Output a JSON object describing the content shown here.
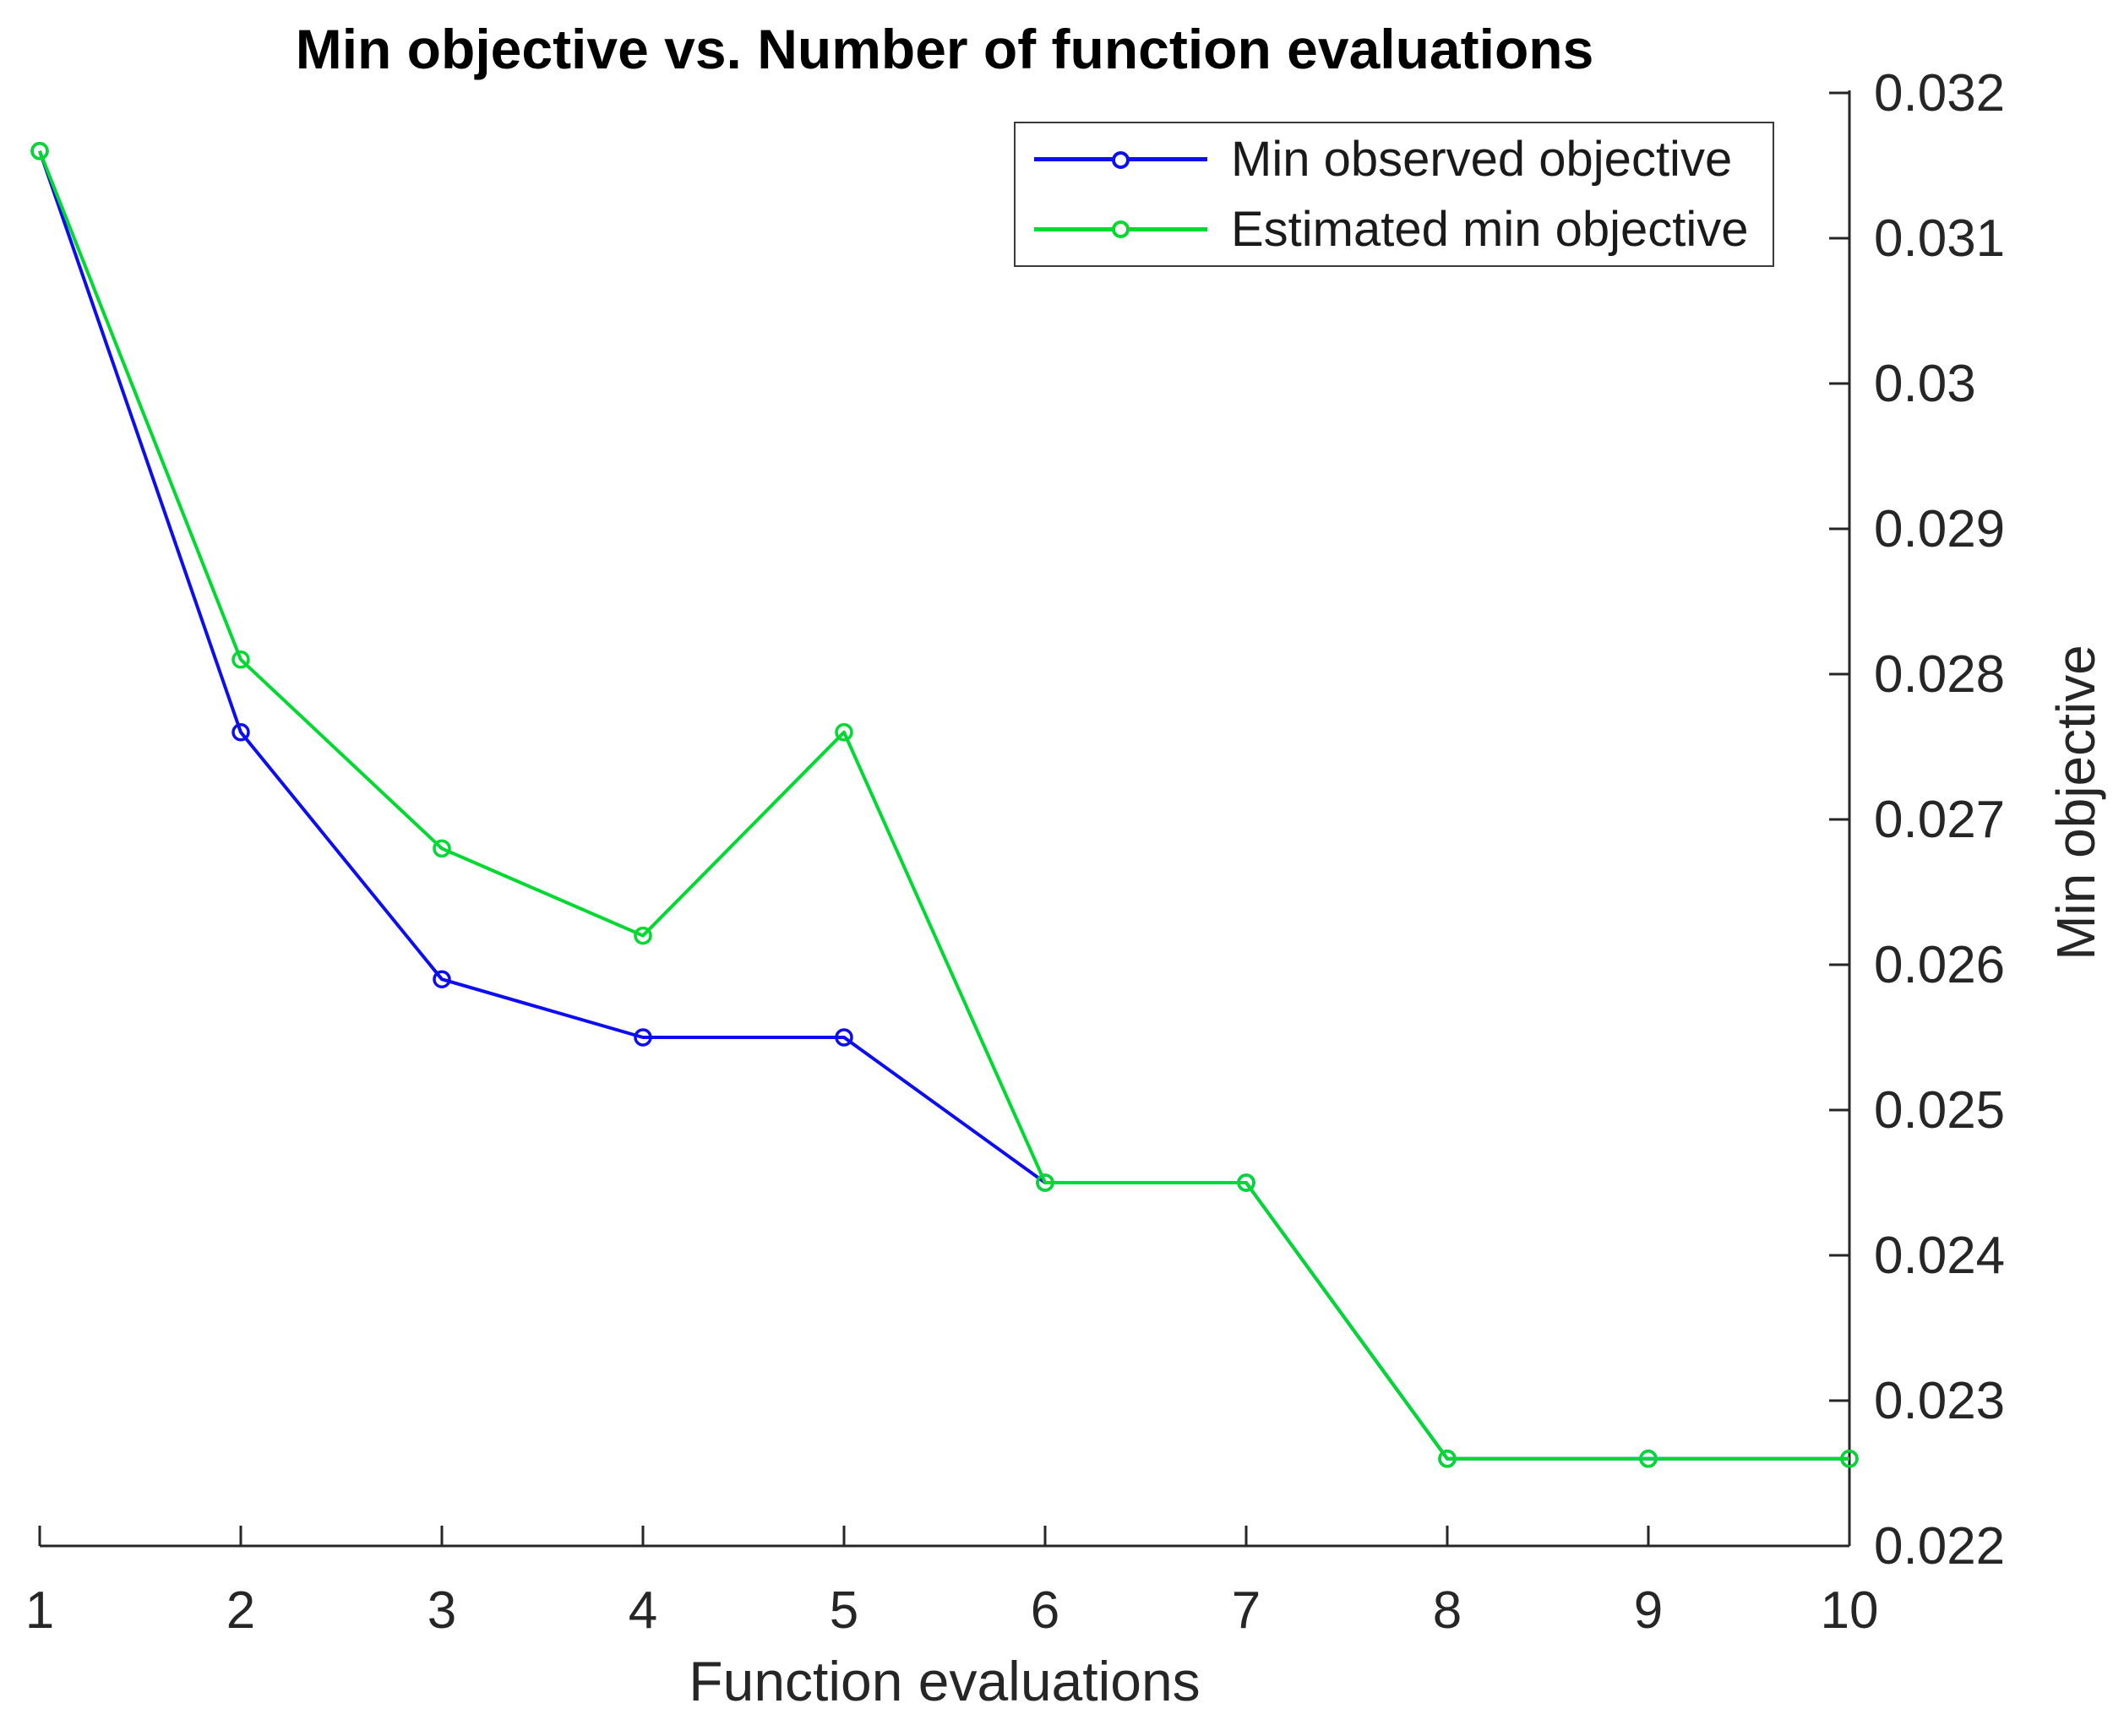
{
  "chart": {
    "title": "Min objective vs. Number of function evaluations",
    "xlabel": "Function evaluations",
    "ylabel": "Min objective"
  },
  "legend": {
    "items": [
      {
        "label": "Min observed objective",
        "color": "#0d0df2",
        "marker": "circle"
      },
      {
        "label": "Estimated min objective",
        "color": "#00d930",
        "marker": "circle"
      }
    ]
  },
  "axis_color": "#262626",
  "chart_data": {
    "type": "line",
    "title": "Min objective vs. Number of function evaluations",
    "xlabel": "Function evaluations",
    "ylabel": "Min objective",
    "x": [
      1,
      2,
      3,
      4,
      5,
      6,
      7,
      8,
      9,
      10
    ],
    "series": [
      {
        "id": "min-observed-objective",
        "name": "Min observed objective",
        "color": "#0d0df2",
        "marker": "o",
        "values": [
          0.0316,
          0.0276,
          0.0259,
          0.0255,
          0.0255,
          0.0245,
          0.0245,
          0.0226,
          0.0226,
          0.0226
        ]
      },
      {
        "id": "estimated-min-objective",
        "name": "Estimated min objective",
        "color": "#00d930",
        "marker": "o",
        "values": [
          0.0316,
          0.0281,
          0.0268,
          0.0262,
          0.0276,
          0.0245,
          0.0245,
          0.0226,
          0.0226,
          0.0226
        ]
      }
    ],
    "xlim": [
      1,
      10
    ],
    "ylim": [
      0.022,
      0.032
    ],
    "x_ticks": [
      1,
      2,
      3,
      4,
      5,
      6,
      7,
      8,
      9,
      10
    ],
    "x_tick_labels": [
      "1",
      "2",
      "3",
      "4",
      "5",
      "6",
      "7",
      "8",
      "9",
      "10"
    ],
    "y_ticks": [
      0.022,
      0.023,
      0.024,
      0.025,
      0.026,
      0.027,
      0.028,
      0.029,
      0.03,
      0.031,
      0.032
    ],
    "y_tick_labels": [
      "0.022",
      "0.023",
      "0.024",
      "0.025",
      "0.026",
      "0.027",
      "0.028",
      "0.029",
      "0.03",
      "0.031",
      "0.032"
    ],
    "grid": false,
    "legend_position": "northeast-inside",
    "y_axis_location": "right",
    "tick_direction": "in"
  }
}
